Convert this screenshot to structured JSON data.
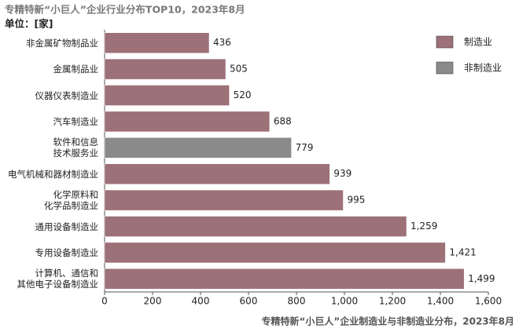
{
  "chart_data": {
    "type": "bar",
    "orientation": "horizontal",
    "title": "专精特新“小巨人”企业行业分布TOP10，2023年8月",
    "unit_label": "单位：[家]",
    "source": "专精特新“小巨人”企业制造业与非制造业分布，2023年8月",
    "categories": [
      "非金属矿物制品业",
      "金属制品业",
      "仪器仪表制造业",
      "汽车制造业",
      "软件和信息\n技术服务业",
      "电气机械和器材制造业",
      "化学原料和\n化学品制造业",
      "通用设备制造业",
      "专用设备制造业",
      "计算机、通信和\n其他电子设备制造业"
    ],
    "series": [
      {
        "name": "制造业",
        "color": "#9c7177",
        "values": [
          436,
          505,
          520,
          688,
          null,
          939,
          995,
          1259,
          1421,
          1499
        ],
        "value_labels": [
          "436",
          "505",
          "520",
          "688",
          null,
          "939",
          "995",
          "1,259",
          "1,421",
          "1,499"
        ]
      },
      {
        "name": "非制造业",
        "color": "#8a8a8a",
        "values": [
          null,
          null,
          null,
          null,
          779,
          null,
          null,
          null,
          null,
          null
        ],
        "value_labels": [
          null,
          null,
          null,
          null,
          "779",
          null,
          null,
          null,
          null,
          null
        ]
      }
    ],
    "xlim": [
      0,
      1600
    ],
    "xticks": [
      0,
      200,
      400,
      600,
      800,
      {
        "value": 1000,
        "label": "1,000"
      },
      {
        "value": 1200,
        "label": "1,200"
      },
      {
        "value": 1400,
        "label": "1,400"
      },
      {
        "value": 1600,
        "label": "1,600"
      }
    ],
    "legend": "top-right"
  }
}
